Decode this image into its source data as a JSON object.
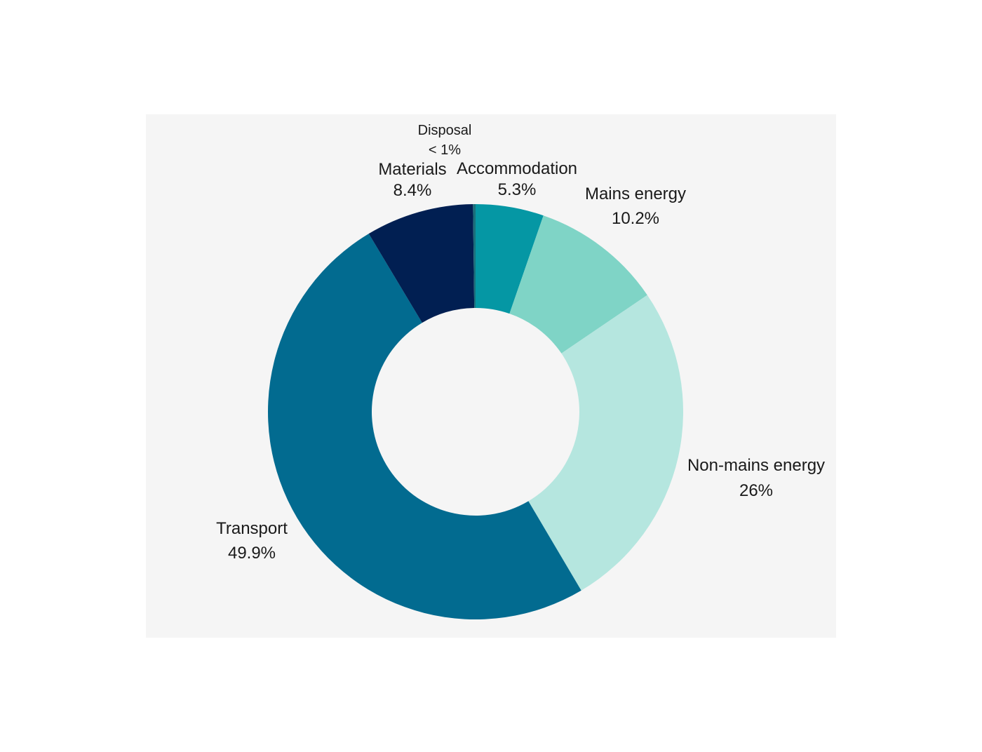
{
  "chart_data": {
    "type": "pie",
    "donut": true,
    "start_angle_deg": 0,
    "direction": "clockwise",
    "background": "#f5f5f5",
    "slices": [
      {
        "label": "Accommodation",
        "value_text": "5.3%",
        "value": 5.3,
        "color": "#0597a4"
      },
      {
        "label": "Mains energy",
        "value_text": "10.2%",
        "value": 10.2,
        "color": "#7fd4c6"
      },
      {
        "label": "Non-mains energy",
        "value_text": "26%",
        "value": 26.0,
        "color": "#b5e6df"
      },
      {
        "label": "Transport",
        "value_text": "49.9%",
        "value": 49.9,
        "color": "#026b90"
      },
      {
        "label": "Materials",
        "value_text": "8.4%",
        "value": 8.4,
        "color": "#011f52"
      },
      {
        "label": "Disposal",
        "value_text": "< 1%",
        "value": 0.2,
        "color": "#1b6f7a"
      }
    ]
  }
}
